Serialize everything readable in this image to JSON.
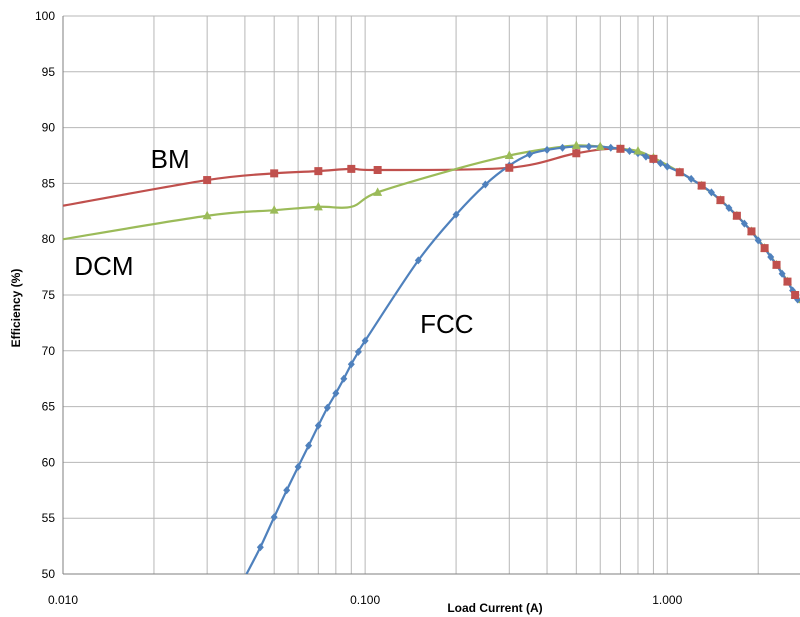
{
  "chart_data": {
    "type": "line",
    "title": "",
    "xlabel": "Load Current (A)",
    "ylabel": "Efficiency (%)",
    "xscale": "log",
    "xlim": [
      0.01,
      2.75
    ],
    "ylim": [
      50,
      100
    ],
    "grid": true,
    "legend": "none",
    "xticks": [
      {
        "value": 0.01,
        "label": "0.010"
      },
      {
        "value": 0.1,
        "label": "0.100"
      },
      {
        "value": 1,
        "label": "1.000"
      }
    ],
    "yticks": [
      50,
      55,
      60,
      65,
      70,
      75,
      80,
      85,
      90,
      95,
      100
    ],
    "series": [
      {
        "name": "BM",
        "color": "#c0504d",
        "marker": "square",
        "label_at": {
          "x": 0.0195,
          "y": 86.4
        },
        "curve": [
          [
            0.01,
            83.0
          ],
          [
            0.03,
            85.3
          ],
          [
            0.05,
            85.9
          ],
          [
            0.07,
            86.1
          ],
          [
            0.09,
            86.3
          ],
          [
            0.11,
            86.2
          ],
          [
            0.3,
            86.4
          ],
          [
            0.5,
            87.7
          ],
          [
            0.7,
            88.1
          ],
          [
            0.9,
            87.2
          ],
          [
            1.1,
            86.0
          ],
          [
            1.3,
            84.8
          ],
          [
            1.5,
            83.5
          ],
          [
            1.7,
            82.1
          ],
          [
            1.9,
            80.7
          ],
          [
            2.1,
            79.2
          ],
          [
            2.3,
            77.7
          ],
          [
            2.5,
            76.2
          ],
          [
            2.65,
            75.0
          ],
          [
            2.75,
            74.3
          ]
        ],
        "markers": [
          [
            0.03,
            85.3
          ],
          [
            0.05,
            85.9
          ],
          [
            0.07,
            86.1
          ],
          [
            0.09,
            86.3
          ],
          [
            0.11,
            86.2
          ],
          [
            0.3,
            86.4
          ],
          [
            0.5,
            87.7
          ],
          [
            0.7,
            88.1
          ],
          [
            0.9,
            87.2
          ],
          [
            1.1,
            86.0
          ],
          [
            1.3,
            84.8
          ],
          [
            1.5,
            83.5
          ],
          [
            1.7,
            82.1
          ],
          [
            1.9,
            80.7
          ],
          [
            2.1,
            79.2
          ],
          [
            2.3,
            77.7
          ],
          [
            2.5,
            76.2
          ],
          [
            2.65,
            75.0
          ]
        ]
      },
      {
        "name": "DCM",
        "color": "#9bbb59",
        "marker": "triangle",
        "label_at": {
          "x": 0.0109,
          "y": 76.8
        },
        "curve": [
          [
            0.01,
            80.0
          ],
          [
            0.03,
            82.1
          ],
          [
            0.05,
            82.6
          ],
          [
            0.07,
            82.9
          ],
          [
            0.09,
            82.9
          ],
          [
            0.11,
            84.2
          ],
          [
            0.2,
            86.3
          ],
          [
            0.3,
            87.5
          ],
          [
            0.4,
            88.1
          ],
          [
            0.5,
            88.4
          ],
          [
            0.6,
            88.3
          ],
          [
            0.7,
            88.1
          ],
          [
            0.8,
            87.9
          ],
          [
            0.9,
            87.3
          ],
          [
            1.1,
            86.0
          ],
          [
            1.3,
            84.8
          ],
          [
            1.5,
            83.5
          ],
          [
            1.7,
            82.1
          ],
          [
            1.9,
            80.7
          ],
          [
            2.1,
            79.2
          ],
          [
            2.3,
            77.7
          ],
          [
            2.5,
            76.2
          ],
          [
            2.65,
            75.0
          ],
          [
            2.75,
            74.3
          ]
        ],
        "markers": [
          [
            0.03,
            82.1
          ],
          [
            0.05,
            82.6
          ],
          [
            0.07,
            82.9
          ],
          [
            0.11,
            84.2
          ],
          [
            0.3,
            87.5
          ],
          [
            0.5,
            88.4
          ],
          [
            0.6,
            88.3
          ],
          [
            0.7,
            88.1
          ],
          [
            0.8,
            87.9
          ],
          [
            0.9,
            87.3
          ],
          [
            1.1,
            86.0
          ],
          [
            1.3,
            84.8
          ],
          [
            1.5,
            83.5
          ],
          [
            1.7,
            82.1
          ],
          [
            1.9,
            80.7
          ],
          [
            2.1,
            79.2
          ],
          [
            2.3,
            77.7
          ],
          [
            2.5,
            76.2
          ],
          [
            2.65,
            75.0
          ]
        ]
      },
      {
        "name": "FCC",
        "color": "#4f81bd",
        "marker": "diamond",
        "label_at": {
          "x": 0.152,
          "y": 71.6
        },
        "curve": [
          [
            0.0405,
            50.0
          ],
          [
            0.045,
            52.4
          ],
          [
            0.05,
            55.1
          ],
          [
            0.055,
            57.5
          ],
          [
            0.06,
            59.6
          ],
          [
            0.065,
            61.5
          ],
          [
            0.07,
            63.3
          ],
          [
            0.075,
            64.9
          ],
          [
            0.08,
            66.2
          ],
          [
            0.085,
            67.5
          ],
          [
            0.09,
            68.8
          ],
          [
            0.095,
            69.9
          ],
          [
            0.1,
            70.9
          ],
          [
            0.15,
            78.1
          ],
          [
            0.2,
            82.2
          ],
          [
            0.25,
            84.9
          ],
          [
            0.3,
            86.6
          ],
          [
            0.35,
            87.6
          ],
          [
            0.4,
            88.0
          ],
          [
            0.45,
            88.2
          ],
          [
            0.5,
            88.3
          ],
          [
            0.55,
            88.3
          ],
          [
            0.6,
            88.3
          ],
          [
            0.65,
            88.2
          ],
          [
            0.7,
            88.1
          ],
          [
            0.75,
            87.9
          ],
          [
            0.8,
            87.7
          ],
          [
            0.85,
            87.4
          ],
          [
            0.9,
            87.1
          ],
          [
            0.95,
            86.8
          ],
          [
            1.0,
            86.5
          ],
          [
            1.1,
            86.0
          ],
          [
            1.2,
            85.4
          ],
          [
            1.3,
            84.8
          ],
          [
            1.4,
            84.2
          ],
          [
            1.5,
            83.5
          ],
          [
            1.6,
            82.8
          ],
          [
            1.7,
            82.1
          ],
          [
            1.8,
            81.4
          ],
          [
            1.9,
            80.7
          ],
          [
            2.0,
            79.9
          ],
          [
            2.1,
            79.2
          ],
          [
            2.2,
            78.4
          ],
          [
            2.3,
            77.7
          ],
          [
            2.4,
            76.9
          ],
          [
            2.5,
            76.2
          ],
          [
            2.6,
            75.4
          ],
          [
            2.7,
            74.6
          ]
        ],
        "markers": [
          [
            0.045,
            52.4
          ],
          [
            0.05,
            55.1
          ],
          [
            0.055,
            57.5
          ],
          [
            0.06,
            59.6
          ],
          [
            0.065,
            61.5
          ],
          [
            0.07,
            63.3
          ],
          [
            0.075,
            64.9
          ],
          [
            0.08,
            66.2
          ],
          [
            0.085,
            67.5
          ],
          [
            0.09,
            68.8
          ],
          [
            0.095,
            69.9
          ],
          [
            0.1,
            70.9
          ],
          [
            0.15,
            78.1
          ],
          [
            0.2,
            82.2
          ],
          [
            0.25,
            84.9
          ],
          [
            0.3,
            86.6
          ],
          [
            0.35,
            87.6
          ],
          [
            0.4,
            88.0
          ],
          [
            0.45,
            88.2
          ],
          [
            0.5,
            88.3
          ],
          [
            0.55,
            88.3
          ],
          [
            0.6,
            88.3
          ],
          [
            0.65,
            88.2
          ],
          [
            0.7,
            88.1
          ],
          [
            0.75,
            87.9
          ],
          [
            0.8,
            87.7
          ],
          [
            0.85,
            87.4
          ],
          [
            0.9,
            87.1
          ],
          [
            0.95,
            86.8
          ],
          [
            1.0,
            86.5
          ],
          [
            1.1,
            86.0
          ],
          [
            1.2,
            85.4
          ],
          [
            1.3,
            84.8
          ],
          [
            1.4,
            84.2
          ],
          [
            1.5,
            83.5
          ],
          [
            1.6,
            82.8
          ],
          [
            1.7,
            82.1
          ],
          [
            1.8,
            81.4
          ],
          [
            1.9,
            80.7
          ],
          [
            2.0,
            79.9
          ],
          [
            2.1,
            79.2
          ],
          [
            2.2,
            78.4
          ],
          [
            2.3,
            77.7
          ],
          [
            2.4,
            76.9
          ],
          [
            2.5,
            76.2
          ],
          [
            2.6,
            75.4
          ],
          [
            2.7,
            74.6
          ]
        ]
      }
    ]
  }
}
